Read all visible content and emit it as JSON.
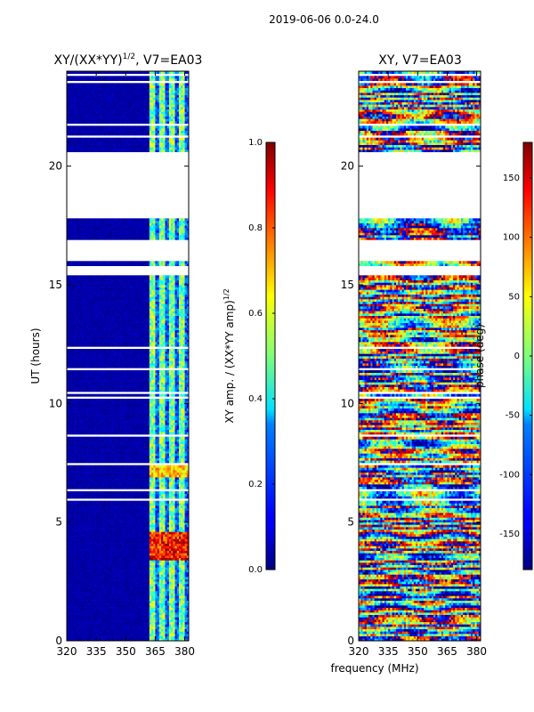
{
  "suptitle": "2019-06-06 0.0-24.0",
  "xlabel_shared": "frequency (MHz)",
  "chart_data": [
    {
      "type": "heatmap",
      "title_main": "XY/(XX*YY)",
      "title_sup": "1/2",
      "title_rest": ", V7=EA03",
      "ylabel": "UT (hours)",
      "xlim": [
        320,
        382
      ],
      "ylim": [
        0,
        24
      ],
      "xticks": [
        "320",
        "335",
        "350",
        "365",
        "380"
      ],
      "xtick_values": [
        320,
        335,
        350,
        365,
        380
      ],
      "yticks": [
        "0",
        "5",
        "10",
        "15",
        "20"
      ],
      "ytick_values": [
        0,
        5,
        10,
        15,
        20
      ],
      "colorbar": {
        "label_main": "XY amp. / (XX*YY amp)",
        "label_sup": "1/2",
        "range": [
          0.0,
          1.0
        ],
        "ticks": [
          "0.0",
          "0.2",
          "0.4",
          "0.6",
          "0.8",
          "1.0"
        ],
        "tick_values": [
          0.0,
          0.2,
          0.4,
          0.6,
          0.8,
          1.0
        ]
      }
    },
    {
      "type": "heatmap",
      "title": "XY, V7=EA03",
      "xlim": [
        320,
        382
      ],
      "ylim": [
        0,
        24
      ],
      "xticks": [
        "320",
        "335",
        "350",
        "365",
        "380"
      ],
      "xtick_values": [
        320,
        335,
        350,
        365,
        380
      ],
      "yticks": [
        "0",
        "5",
        "10",
        "15",
        "20"
      ],
      "ytick_values": [
        0,
        5,
        10,
        15,
        20
      ],
      "colorbar": {
        "label": "phase (deg)",
        "range": [
          -180,
          180
        ],
        "ticks": [
          "-150",
          "-100",
          "-50",
          "0",
          "50",
          "100",
          "150"
        ],
        "tick_values": [
          -150,
          -100,
          -50,
          0,
          50,
          100,
          150
        ]
      }
    }
  ]
}
